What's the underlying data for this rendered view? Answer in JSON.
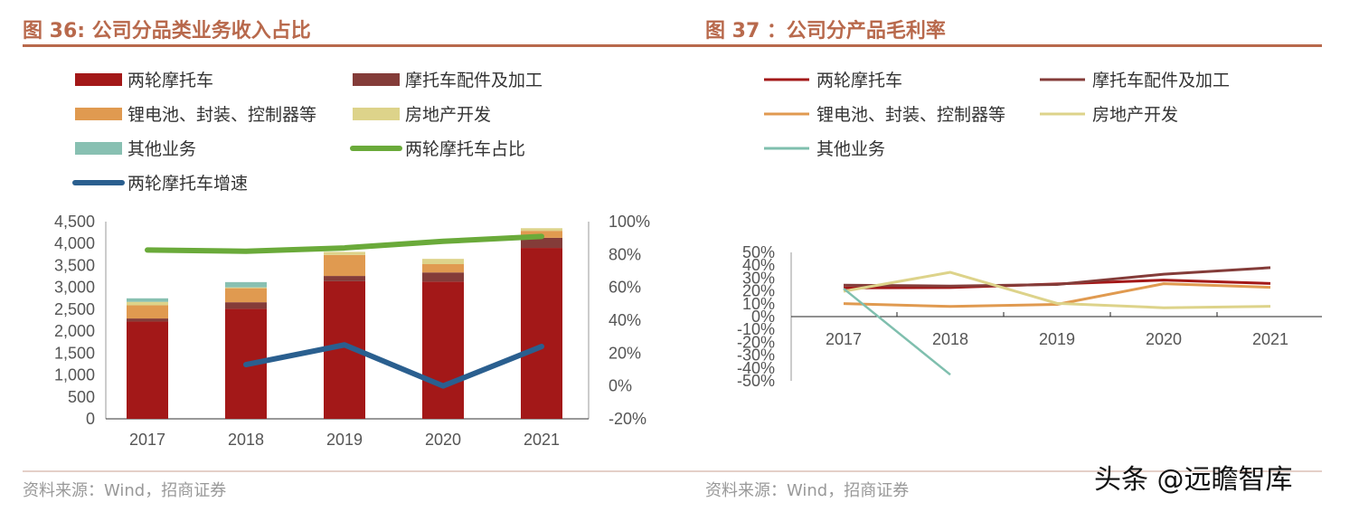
{
  "left": {
    "title": "图 36: 公司分品类业务收入占比",
    "source": "资料来源：Wind，招商证券",
    "chart_data": {
      "type": "bar",
      "stacked": true,
      "categories": [
        "2017",
        "2018",
        "2019",
        "2020",
        "2021"
      ],
      "ylim": [
        0,
        4500
      ],
      "yticks": [
        "0",
        "500",
        "1,000",
        "1,500",
        "2,000",
        "2,500",
        "3,000",
        "3,500",
        "4,000",
        "4,500"
      ],
      "y2lim": [
        -20,
        100
      ],
      "y2ticks": [
        "-20%",
        "0%",
        "20%",
        "40%",
        "60%",
        "80%",
        "100%"
      ],
      "legend_position": "top",
      "series": [
        {
          "name": "两轮摩托车",
          "type": "bar",
          "color": "#a31818",
          "values": [
            2220,
            2510,
            3140,
            3130,
            3900
          ]
        },
        {
          "name": "摩托车配件及加工",
          "type": "bar",
          "color": "#843c39",
          "values": [
            70,
            150,
            120,
            210,
            230
          ]
        },
        {
          "name": "锂电池、封装、控制器等",
          "type": "bar",
          "color": "#e09a50",
          "values": [
            300,
            320,
            480,
            190,
            160
          ]
        },
        {
          "name": "房地产开发",
          "type": "bar",
          "color": "#ddd38a",
          "values": [
            80,
            20,
            70,
            120,
            60
          ]
        },
        {
          "name": "其他业务",
          "type": "bar",
          "color": "#88c0b2",
          "values": [
            80,
            120,
            0,
            0,
            0
          ]
        },
        {
          "name": "两轮摩托车占比",
          "type": "line",
          "axis": "right",
          "color": "#6aaa3a",
          "values": [
            82.7,
            82,
            84,
            88,
            91
          ]
        },
        {
          "name": "两轮摩托车增速",
          "type": "line",
          "axis": "right",
          "color": "#2a5f8f",
          "values": [
            null,
            13,
            25,
            0,
            24
          ]
        }
      ]
    }
  },
  "right": {
    "title": "图 37 ：公司分产品毛利率",
    "source": "资料来源：Wind，招商证券",
    "chart_data": {
      "type": "line",
      "categories": [
        "2017",
        "2018",
        "2019",
        "2020",
        "2021"
      ],
      "ylim": [
        -50,
        50
      ],
      "yticks": [
        "-50%",
        "-40%",
        "-30%",
        "-20%",
        "-10%",
        "0%",
        "10%",
        "20%",
        "30%",
        "40%",
        "50%"
      ],
      "legend_position": "top",
      "series": [
        {
          "name": "两轮摩托车",
          "color": "#a31818",
          "values": [
            22.4,
            22.6,
            25.4,
            28.4,
            25.8
          ]
        },
        {
          "name": "摩托车配件及加工",
          "color": "#843c39",
          "values": [
            24.5,
            23.8,
            25,
            33,
            38.1
          ]
        },
        {
          "name": "锂电池、封装、控制器等",
          "color": "#e09a50",
          "values": [
            10.1,
            7.9,
            9.5,
            25.6,
            22.8
          ]
        },
        {
          "name": "房地产开发",
          "color": "#ddd38a",
          "values": [
            19.7,
            34.5,
            10.3,
            6.9,
            8
          ]
        },
        {
          "name": "其他业务",
          "color": "#7fbfae",
          "values": [
            21.8,
            -45.2,
            null,
            null,
            null
          ]
        }
      ]
    }
  },
  "watermark": "头条 @远瞻智库",
  "colors": {
    "title": "#b8694c",
    "rule": "#b8694c"
  }
}
